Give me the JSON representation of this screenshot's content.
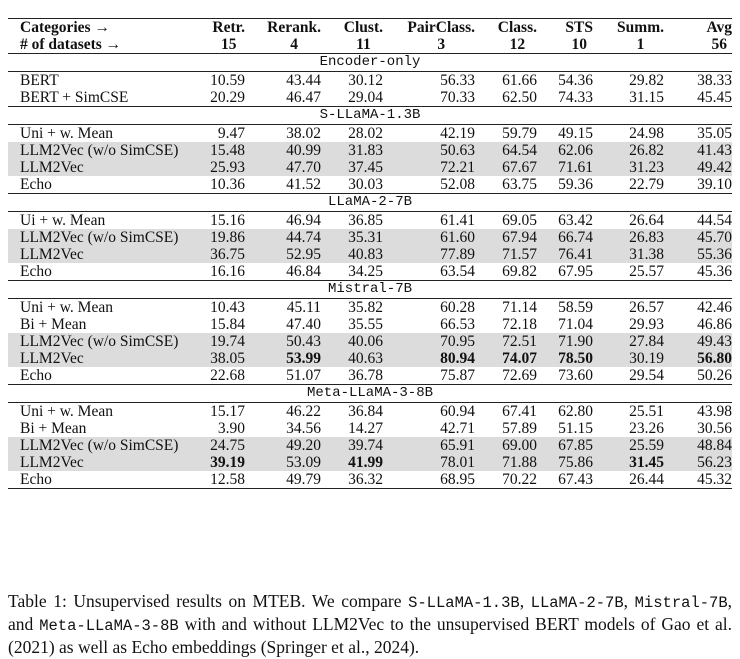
{
  "header": {
    "row1_label": "Categories →",
    "row2_label": "# of datasets →",
    "columns": [
      {
        "name": "Retr.",
        "count": "15"
      },
      {
        "name": "Rerank.",
        "count": "4"
      },
      {
        "name": "Clust.",
        "count": "11"
      },
      {
        "name": "PairClass.",
        "count": "3"
      },
      {
        "name": "Class.",
        "count": "12"
      },
      {
        "name": "STS",
        "count": "10"
      },
      {
        "name": "Summ.",
        "count": "1"
      },
      {
        "name": "Avg",
        "count": "56"
      }
    ]
  },
  "sections": [
    {
      "title": "Encoder-only",
      "rows": [
        {
          "label": "BERT",
          "values": [
            "10.59",
            "43.44",
            "30.12",
            "56.33",
            "61.66",
            "54.36",
            "29.82",
            "38.33"
          ],
          "shaded": false,
          "bold": []
        },
        {
          "label": "BERT + SimCSE",
          "values": [
            "20.29",
            "46.47",
            "29.04",
            "70.33",
            "62.50",
            "74.33",
            "31.15",
            "45.45"
          ],
          "shaded": false,
          "bold": []
        }
      ]
    },
    {
      "title": "S-LLaMA-1.3B",
      "rows": [
        {
          "label": "Uni + w. Mean",
          "values": [
            "9.47",
            "38.02",
            "28.02",
            "42.19",
            "59.79",
            "49.15",
            "24.98",
            "35.05"
          ],
          "shaded": false,
          "bold": []
        },
        {
          "label": "LLM2Vec (w/o SimCSE)",
          "values": [
            "15.48",
            "40.99",
            "31.83",
            "50.63",
            "64.54",
            "62.06",
            "26.82",
            "41.43"
          ],
          "shaded": true,
          "bold": []
        },
        {
          "label": "LLM2Vec",
          "values": [
            "25.93",
            "47.70",
            "37.45",
            "72.21",
            "67.67",
            "71.61",
            "31.23",
            "49.42"
          ],
          "shaded": true,
          "bold": []
        },
        {
          "label": "Echo",
          "values": [
            "10.36",
            "41.52",
            "30.03",
            "52.08",
            "63.75",
            "59.36",
            "22.79",
            "39.10"
          ],
          "shaded": false,
          "bold": []
        }
      ]
    },
    {
      "title": "LLaMA-2-7B",
      "rows": [
        {
          "label": "Ui + w. Mean",
          "values": [
            "15.16",
            "46.94",
            "36.85",
            "61.41",
            "69.05",
            "63.42",
            "26.64",
            "44.54"
          ],
          "shaded": false,
          "bold": []
        },
        {
          "label": "LLM2Vec (w/o SimCSE)",
          "values": [
            "19.86",
            "44.74",
            "35.31",
            "61.60",
            "67.94",
            "66.74",
            "26.83",
            "45.70"
          ],
          "shaded": true,
          "bold": []
        },
        {
          "label": "LLM2Vec",
          "values": [
            "36.75",
            "52.95",
            "40.83",
            "77.89",
            "71.57",
            "76.41",
            "31.38",
            "55.36"
          ],
          "shaded": true,
          "bold": []
        },
        {
          "label": "Echo",
          "values": [
            "16.16",
            "46.84",
            "34.25",
            "63.54",
            "69.82",
            "67.95",
            "25.57",
            "45.36"
          ],
          "shaded": false,
          "bold": []
        }
      ]
    },
    {
      "title": "Mistral-7B",
      "rows": [
        {
          "label": "Uni + w. Mean",
          "values": [
            "10.43",
            "45.11",
            "35.82",
            "60.28",
            "71.14",
            "58.59",
            "26.57",
            "42.46"
          ],
          "shaded": false,
          "bold": []
        },
        {
          "label": "Bi + Mean",
          "values": [
            "15.84",
            "47.40",
            "35.55",
            "66.53",
            "72.18",
            "71.04",
            "29.93",
            "46.86"
          ],
          "shaded": false,
          "bold": []
        },
        {
          "label": "LLM2Vec (w/o SimCSE)",
          "values": [
            "19.74",
            "50.43",
            "40.06",
            "70.95",
            "72.51",
            "71.90",
            "27.84",
            "49.43"
          ],
          "shaded": true,
          "bold": []
        },
        {
          "label": "LLM2Vec",
          "values": [
            "38.05",
            "53.99",
            "40.63",
            "80.94",
            "74.07",
            "78.50",
            "30.19",
            "56.80"
          ],
          "shaded": true,
          "bold": [
            1,
            3,
            4,
            5,
            7
          ]
        },
        {
          "label": "Echo",
          "values": [
            "22.68",
            "51.07",
            "36.78",
            "75.87",
            "72.69",
            "73.60",
            "29.54",
            "50.26"
          ],
          "shaded": false,
          "bold": []
        }
      ]
    },
    {
      "title": "Meta-LLaMA-3-8B",
      "rows": [
        {
          "label": "Uni + w. Mean",
          "values": [
            "15.17",
            "46.22",
            "36.84",
            "60.94",
            "67.41",
            "62.80",
            "25.51",
            "43.98"
          ],
          "shaded": false,
          "bold": []
        },
        {
          "label": "Bi + Mean",
          "values": [
            "3.90",
            "34.56",
            "14.27",
            "42.71",
            "57.89",
            "51.15",
            "23.26",
            "30.56"
          ],
          "shaded": false,
          "bold": []
        },
        {
          "label": "LLM2Vec (w/o SimCSE)",
          "values": [
            "24.75",
            "49.20",
            "39.74",
            "65.91",
            "69.00",
            "67.85",
            "25.59",
            "48.84"
          ],
          "shaded": true,
          "bold": []
        },
        {
          "label": "LLM2Vec",
          "values": [
            "39.19",
            "53.09",
            "41.99",
            "78.01",
            "71.88",
            "75.86",
            "31.45",
            "56.23"
          ],
          "shaded": true,
          "bold": [
            0,
            2,
            6
          ]
        },
        {
          "label": "Echo",
          "values": [
            "12.58",
            "49.79",
            "36.32",
            "68.95",
            "70.22",
            "67.43",
            "26.44",
            "45.32"
          ],
          "shaded": false,
          "bold": []
        }
      ]
    }
  ],
  "caption": {
    "t1": "Table 1:  Unsupervised results on MTEB. We compare ",
    "m1": "S-LLaMA-1.3B",
    "t2": ", ",
    "m2": "LLaMA-2-7B",
    "t3": ", ",
    "m3": "Mistral-7B",
    "t4": ", and ",
    "m4": "Meta-LLaMA-3-8B",
    "t5": " with and without LLM2Vec to the unsupervised BERT models of Gao et al. (2021) as well as Echo embeddings (Springer et al., 2024)."
  },
  "colors": {
    "shade": "#dcdcdc",
    "rule": "#222222"
  }
}
